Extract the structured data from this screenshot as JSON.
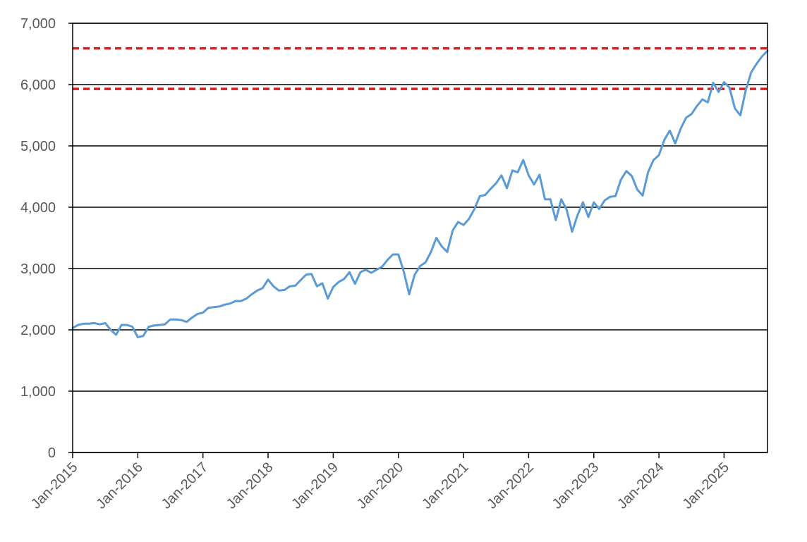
{
  "chart_data": {
    "type": "line",
    "title": "",
    "xlabel": "",
    "ylabel": "",
    "ylim": [
      0,
      7000
    ],
    "xlim": [
      "2015-01",
      "2025-09"
    ],
    "y_ticks": [
      0,
      1000,
      2000,
      3000,
      4000,
      5000,
      6000,
      7000
    ],
    "y_tick_labels": [
      "0",
      "1,000",
      "2,000",
      "3,000",
      "4,000",
      "5,000",
      "6,000",
      "7,000"
    ],
    "x_ticks": [
      "2015-01",
      "2016-01",
      "2017-01",
      "2018-01",
      "2019-01",
      "2020-01",
      "2021-01",
      "2022-01",
      "2023-01",
      "2024-01",
      "2025-01"
    ],
    "x_tick_labels": [
      "Jan-2015",
      "Jan-2016",
      "Jan-2017",
      "Jan-2018",
      "Jan-2019",
      "Jan-2020",
      "Jan-2021",
      "Jan-2022",
      "Jan-2023",
      "Jan-2024",
      "Jan-2025"
    ],
    "grid": "horizontal",
    "legend": "none",
    "series": [
      {
        "color": "#5b9bd5",
        "x": [
          "2015-01",
          "2015-02",
          "2015-03",
          "2015-04",
          "2015-05",
          "2015-06",
          "2015-07",
          "2015-08",
          "2015-09",
          "2015-10",
          "2015-11",
          "2015-12",
          "2016-01",
          "2016-02",
          "2016-03",
          "2016-04",
          "2016-05",
          "2016-06",
          "2016-07",
          "2016-08",
          "2016-09",
          "2016-10",
          "2016-11",
          "2016-12",
          "2017-01",
          "2017-02",
          "2017-03",
          "2017-04",
          "2017-05",
          "2017-06",
          "2017-07",
          "2017-08",
          "2017-09",
          "2017-10",
          "2017-11",
          "2017-12",
          "2018-01",
          "2018-02",
          "2018-03",
          "2018-04",
          "2018-05",
          "2018-06",
          "2018-07",
          "2018-08",
          "2018-09",
          "2018-10",
          "2018-11",
          "2018-12",
          "2019-01",
          "2019-02",
          "2019-03",
          "2019-04",
          "2019-05",
          "2019-06",
          "2019-07",
          "2019-08",
          "2019-09",
          "2019-10",
          "2019-11",
          "2019-12",
          "2020-01",
          "2020-02",
          "2020-03",
          "2020-04",
          "2020-05",
          "2020-06",
          "2020-07",
          "2020-08",
          "2020-09",
          "2020-10",
          "2020-11",
          "2020-12",
          "2021-01",
          "2021-02",
          "2021-03",
          "2021-04",
          "2021-05",
          "2021-06",
          "2021-07",
          "2021-08",
          "2021-09",
          "2021-10",
          "2021-11",
          "2021-12",
          "2022-01",
          "2022-02",
          "2022-03",
          "2022-04",
          "2022-05",
          "2022-06",
          "2022-07",
          "2022-08",
          "2022-09",
          "2022-10",
          "2022-11",
          "2022-12",
          "2023-01",
          "2023-02",
          "2023-03",
          "2023-04",
          "2023-05",
          "2023-06",
          "2023-07",
          "2023-08",
          "2023-09",
          "2023-10",
          "2023-11",
          "2023-12",
          "2024-01",
          "2024-02",
          "2024-03",
          "2024-04",
          "2024-05",
          "2024-06",
          "2024-07",
          "2024-08",
          "2024-09",
          "2024-10",
          "2024-11",
          "2024-12",
          "2025-01",
          "2025-02",
          "2025-03",
          "2025-04",
          "2025-05",
          "2025-06",
          "2025-07",
          "2025-08",
          "2025-09"
        ],
        "values": [
          2030,
          2080,
          2100,
          2100,
          2110,
          2090,
          2110,
          2000,
          1920,
          2080,
          2080,
          2050,
          1880,
          1900,
          2050,
          2070,
          2080,
          2090,
          2170,
          2170,
          2160,
          2130,
          2200,
          2260,
          2280,
          2360,
          2370,
          2380,
          2410,
          2430,
          2470,
          2470,
          2510,
          2580,
          2640,
          2680,
          2820,
          2710,
          2640,
          2650,
          2710,
          2720,
          2810,
          2900,
          2910,
          2710,
          2760,
          2510,
          2700,
          2780,
          2830,
          2940,
          2750,
          2940,
          2980,
          2930,
          2980,
          3030,
          3140,
          3230,
          3230,
          2950,
          2580,
          2900,
          3040,
          3100,
          3270,
          3500,
          3360,
          3270,
          3620,
          3760,
          3710,
          3810,
          3970,
          4180,
          4200,
          4300,
          4390,
          4520,
          4310,
          4600,
          4570,
          4770,
          4520,
          4370,
          4530,
          4130,
          4130,
          3790,
          4130,
          3960,
          3600,
          3870,
          4080,
          3840,
          4080,
          3970,
          4110,
          4170,
          4180,
          4450,
          4590,
          4510,
          4290,
          4190,
          4570,
          4770,
          4850,
          5100,
          5250,
          5040,
          5280,
          5460,
          5520,
          5650,
          5760,
          5710,
          6030,
          5880,
          6040,
          5950,
          5610,
          5500,
          5910,
          6200,
          6340,
          6460,
          6550
        ]
      }
    ],
    "reference_lines": [
      {
        "y": 5930,
        "color": "#e01b1b",
        "style": "dashed"
      },
      {
        "y": 6590,
        "color": "#e01b1b",
        "style": "dashed"
      }
    ]
  }
}
